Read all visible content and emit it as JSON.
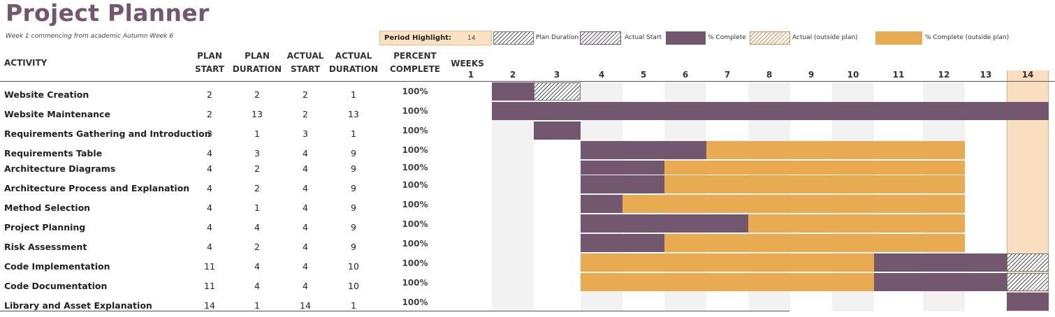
{
  "header": {
    "title": "Project Planner",
    "subtitle": "Week 1 commencing from academic Autumn Week 6"
  },
  "period_highlight": {
    "label": "Period Highlight:",
    "value": 14
  },
  "legend": [
    {
      "key": "plan",
      "label": "Plan Duration"
    },
    {
      "key": "actual_start",
      "label": "Actual Start"
    },
    {
      "key": "complete",
      "label": "% Complete"
    },
    {
      "key": "actual_outside",
      "label": "Actual (outside plan)"
    },
    {
      "key": "complete_outside",
      "label": "% Complete (outside plan)"
    }
  ],
  "columns": {
    "activity": "ACTIVITY",
    "plan_start": [
      "PLAN",
      "START"
    ],
    "plan_duration": [
      "PLAN",
      "DURATION"
    ],
    "actual_start": [
      "ACTUAL",
      "START"
    ],
    "actual_duration": [
      "ACTUAL",
      "DURATION"
    ],
    "percent_complete": [
      "PERCENT",
      "COMPLETE"
    ],
    "weeks_label": "WEEKS"
  },
  "weeks": [
    1,
    2,
    3,
    4,
    5,
    6,
    7,
    8,
    9,
    10,
    11,
    12,
    13,
    14
  ],
  "colors": {
    "purple": "#72576f",
    "orange": "#e8ab52",
    "highlight": "#f9dfc0"
  },
  "activities": [
    {
      "name": "Website Creation",
      "plan_start": 2,
      "plan_duration": 2,
      "actual_start": 2,
      "actual_duration": 1,
      "percent": "100%"
    },
    {
      "name": "Website Maintenance",
      "plan_start": 2,
      "plan_duration": 13,
      "actual_start": 2,
      "actual_duration": 13,
      "percent": "100%"
    },
    {
      "name": "Requirements Gathering and Introduction",
      "plan_start": 3,
      "plan_duration": 1,
      "actual_start": 3,
      "actual_duration": 1,
      "percent": "100%"
    },
    {
      "name": "Requirements Table",
      "plan_start": 4,
      "plan_duration": 3,
      "actual_start": 4,
      "actual_duration": 9,
      "percent": "100%"
    },
    {
      "name": "Architecture Diagrams",
      "plan_start": 4,
      "plan_duration": 2,
      "actual_start": 4,
      "actual_duration": 9,
      "percent": "100%"
    },
    {
      "name": "Architecture Process and Explanation",
      "plan_start": 4,
      "plan_duration": 2,
      "actual_start": 4,
      "actual_duration": 9,
      "percent": "100%"
    },
    {
      "name": "Method Selection",
      "plan_start": 4,
      "plan_duration": 1,
      "actual_start": 4,
      "actual_duration": 9,
      "percent": "100%"
    },
    {
      "name": "Project Planning",
      "plan_start": 4,
      "plan_duration": 4,
      "actual_start": 4,
      "actual_duration": 9,
      "percent": "100%"
    },
    {
      "name": "Risk Assessment",
      "plan_start": 4,
      "plan_duration": 2,
      "actual_start": 4,
      "actual_duration": 9,
      "percent": "100%"
    },
    {
      "name": "Code Implementation",
      "plan_start": 11,
      "plan_duration": 4,
      "actual_start": 4,
      "actual_duration": 10,
      "percent": "100%"
    },
    {
      "name": "Code Documentation",
      "plan_start": 11,
      "plan_duration": 4,
      "actual_start": 4,
      "actual_duration": 10,
      "percent": "100%"
    },
    {
      "name": "Library and Asset Explanation",
      "plan_start": 14,
      "plan_duration": 1,
      "actual_start": 14,
      "actual_duration": 1,
      "percent": "100%"
    }
  ]
}
